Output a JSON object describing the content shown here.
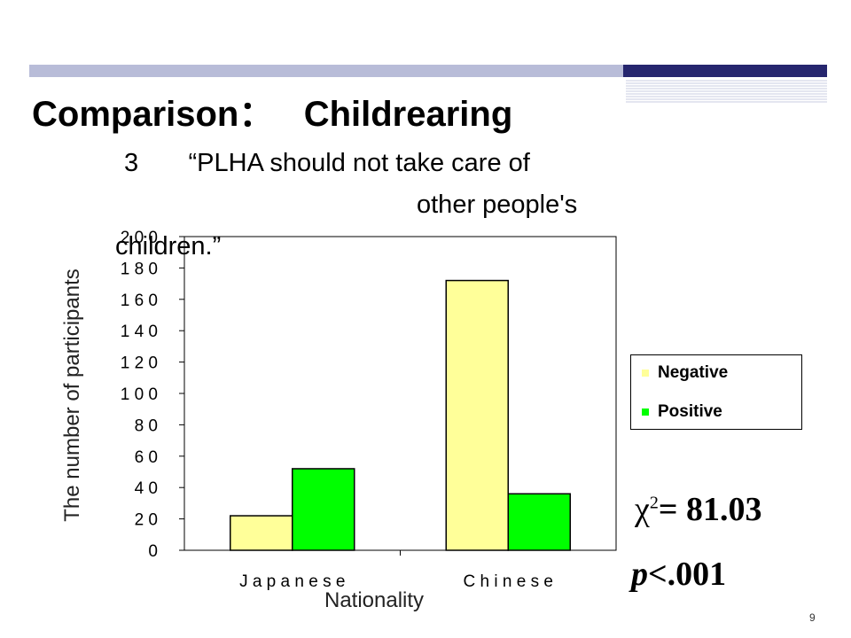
{
  "slide": {
    "title": "Comparison：   Childrearing",
    "subtitle_line1": "3       “PLHA should not take care of",
    "subtitle_line2": "other people's",
    "subtitle_line3": "children.”",
    "page_number": "9"
  },
  "stats": {
    "chi_symbol": "χ",
    "chi_sup": "2",
    "chi_value": "= 81.03",
    "p_label": "p",
    "p_value": "<.001"
  },
  "colors": {
    "negative": "#ffff99",
    "positive": "#00ff00",
    "title_bar": "#26266e",
    "bar_light": "#b8bcd8"
  },
  "chart_data": {
    "type": "bar",
    "categories": [
      "J a p a n e s e",
      "C h i n e s e"
    ],
    "series": [
      {
        "name": "Negative",
        "values": [
          22,
          172
        ]
      },
      {
        "name": "Positive",
        "values": [
          52,
          36
        ]
      }
    ],
    "xlabel": "Nationality",
    "ylabel": "The number of participants",
    "ylim": [
      0,
      200
    ],
    "yticks": [
      "0",
      "2 0",
      "4 0",
      "6 0",
      "8 0",
      "1 0 0",
      "1 2 0",
      "1 4 0",
      "1 6 0",
      "1 8 0",
      "2 0 0"
    ],
    "ytick_values": [
      0,
      20,
      40,
      60,
      80,
      100,
      120,
      140,
      160,
      180,
      200
    ],
    "legend_position": "right",
    "grid": false
  }
}
